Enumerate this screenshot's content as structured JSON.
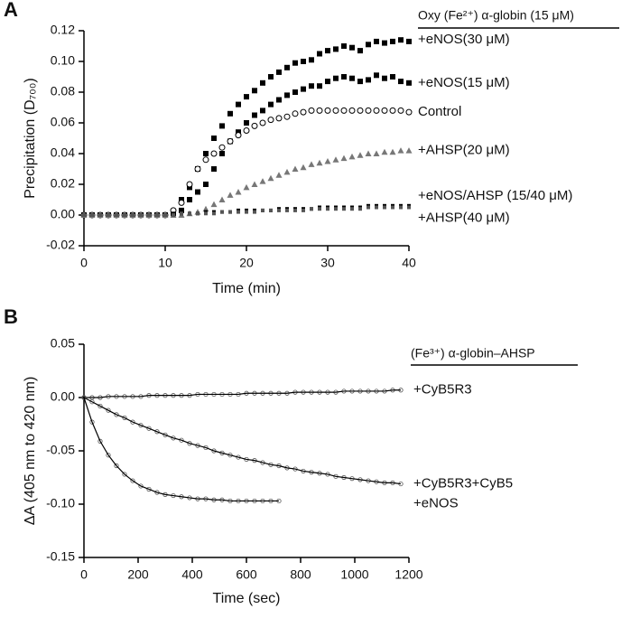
{
  "chart_data": [
    {
      "type": "scatter",
      "panel_label": "A",
      "x_label": "Time (min)",
      "y_label": "Precipitation (D₇₀₀)",
      "legend_title": "Oxy (Fe²⁺) α-globin (15 μM)",
      "x": [
        0,
        1,
        2,
        3,
        4,
        5,
        6,
        7,
        8,
        9,
        10,
        11,
        12,
        13,
        14,
        15,
        16,
        17,
        18,
        19,
        20,
        21,
        22,
        23,
        24,
        25,
        26,
        27,
        28,
        29,
        30,
        31,
        32,
        33,
        34,
        35,
        36,
        37,
        38,
        39,
        40
      ],
      "xlim": [
        0,
        40
      ],
      "xticks": [
        0,
        10,
        20,
        30,
        40
      ],
      "ylim": [
        -0.02,
        0.12
      ],
      "yticks": [
        -0.02,
        {
          "value": 0,
          "label": "0.00"
        },
        0.02,
        0.04,
        0.06,
        0.08,
        {
          "value": 0.1,
          "label": "0.10"
        },
        0.12
      ],
      "series": [
        {
          "name": "+eNOS(30 μM)",
          "color": "#000000",
          "marker": "square",
          "values": [
            0,
            0,
            0,
            0,
            0,
            0,
            0,
            0,
            0,
            0,
            0,
            0.002,
            0.01,
            0.018,
            0.03,
            0.04,
            0.05,
            0.058,
            0.066,
            0.072,
            0.077,
            0.081,
            0.086,
            0.09,
            0.093,
            0.096,
            0.099,
            0.1,
            0.101,
            0.105,
            0.107,
            0.108,
            0.11,
            0.109,
            0.107,
            0.111,
            0.113,
            0.112,
            0.113,
            0.114,
            0.113
          ]
        },
        {
          "name": "+eNOS(15 μM)",
          "color": "#000000",
          "marker": "square",
          "values": [
            0,
            0,
            0,
            0,
            0,
            0,
            0,
            0,
            0,
            0,
            0,
            0.001,
            0.003,
            0.01,
            0.015,
            0.02,
            0.03,
            0.04,
            0.048,
            0.054,
            0.06,
            0.065,
            0.068,
            0.072,
            0.075,
            0.078,
            0.08,
            0.082,
            0.084,
            0.084,
            0.087,
            0.089,
            0.09,
            0.089,
            0.087,
            0.088,
            0.091,
            0.089,
            0.09,
            0.087,
            0.086
          ]
        },
        {
          "name": "Control",
          "color": "#000000",
          "marker": "circle-open",
          "values": [
            0,
            0,
            0,
            0,
            0,
            0,
            0,
            0,
            0,
            0,
            0,
            0.003,
            0.008,
            0.02,
            0.03,
            0.036,
            0.04,
            0.044,
            0.048,
            0.052,
            0.055,
            0.058,
            0.06,
            0.062,
            0.063,
            0.064,
            0.066,
            0.067,
            0.068,
            0.068,
            0.068,
            0.068,
            0.068,
            0.068,
            0.068,
            0.068,
            0.068,
            0.068,
            0.068,
            0.068,
            0.067
          ]
        },
        {
          "name": "+AHSP(20 μM)",
          "color": "#777777",
          "marker": "triangle",
          "values": [
            0,
            0,
            0,
            0,
            0,
            0,
            0,
            0,
            0,
            0,
            0,
            0,
            0,
            0.001,
            0.002,
            0.004,
            0.007,
            0.01,
            0.013,
            0.015,
            0.018,
            0.02,
            0.022,
            0.024,
            0.026,
            0.028,
            0.03,
            0.031,
            0.033,
            0.034,
            0.035,
            0.036,
            0.037,
            0.038,
            0.039,
            0.04,
            0.04,
            0.041,
            0.041,
            0.042,
            0.042
          ]
        },
        {
          "name": "+eNOS/AHSP (15/40 μM)",
          "color": "#000000",
          "marker": "square",
          "values": [
            0,
            0,
            0,
            0,
            0,
            0,
            0,
            0,
            0,
            0,
            0,
            0.001,
            0.001,
            0.001,
            0.001,
            0.002,
            0.002,
            0.002,
            0.002,
            0.003,
            0.003,
            0.003,
            0.003,
            0.003,
            0.004,
            0.004,
            0.004,
            0.004,
            0.004,
            0.005,
            0.005,
            0.005,
            0.005,
            0.005,
            0.005,
            0.006,
            0.006,
            0.006,
            0.006,
            0.006,
            0.006
          ]
        },
        {
          "name": "+AHSP(40 μM)",
          "color": "#555555",
          "marker": "square",
          "values": [
            0,
            0,
            0,
            0,
            0,
            0,
            0,
            0,
            0,
            0,
            0,
            0,
            0.001,
            0.001,
            0.001,
            0.001,
            0.001,
            0.002,
            0.002,
            0.002,
            0.002,
            0.002,
            0.003,
            0.003,
            0.003,
            0.003,
            0.003,
            0.003,
            0.004,
            0.004,
            0.004,
            0.004,
            0.004,
            0.004,
            0.004,
            0.005,
            0.005,
            0.005,
            0.005,
            0.005,
            0.005
          ]
        }
      ]
    },
    {
      "type": "scatter-line",
      "panel_label": "B",
      "x_label": "Time (sec)",
      "y_label": "ΔA (405 nm to 420 nm)",
      "legend_title": "(Fe³⁺) α-globin–AHSP",
      "x": [
        0,
        30,
        60,
        90,
        120,
        150,
        180,
        210,
        240,
        270,
        300,
        330,
        360,
        390,
        420,
        450,
        480,
        510,
        540,
        570,
        600,
        630,
        660,
        690,
        720,
        750,
        780,
        810,
        840,
        870,
        900,
        930,
        960,
        990,
        1020,
        1050,
        1080,
        1110,
        1140,
        1170
      ],
      "xlim": [
        0,
        1200
      ],
      "xticks": [
        0,
        200,
        400,
        600,
        800,
        1000,
        1200
      ],
      "ylim": [
        -0.15,
        0.05
      ],
      "yticks": [
        -0.15,
        {
          "value": -0.1,
          "label": "-0.10"
        },
        -0.05,
        {
          "value": 0,
          "label": "0.00"
        },
        0.05
      ],
      "series": [
        {
          "name": "+CyB5R3",
          "color": "#555555",
          "values": [
            0,
            0,
            0,
            0.001,
            0.001,
            0.001,
            0.001,
            0.001,
            0.002,
            0.002,
            0.002,
            0.002,
            0.002,
            0.002,
            0.003,
            0.003,
            0.003,
            0.003,
            0.003,
            0.003,
            0.004,
            0.004,
            0.004,
            0.004,
            0.004,
            0.004,
            0.005,
            0.005,
            0.005,
            0.005,
            0.005,
            0.005,
            0.006,
            0.006,
            0.006,
            0.006,
            0.006,
            0.006,
            0.007,
            0.007
          ]
        },
        {
          "name": "+CyB5R3+CyB5",
          "color": "#555555",
          "values": [
            0,
            -0.004,
            -0.008,
            -0.012,
            -0.016,
            -0.019,
            -0.023,
            -0.026,
            -0.029,
            -0.032,
            -0.035,
            -0.038,
            -0.04,
            -0.043,
            -0.045,
            -0.047,
            -0.05,
            -0.052,
            -0.054,
            -0.056,
            -0.058,
            -0.059,
            -0.061,
            -0.063,
            -0.064,
            -0.066,
            -0.067,
            -0.069,
            -0.07,
            -0.071,
            -0.072,
            -0.074,
            -0.075,
            -0.076,
            -0.077,
            -0.078,
            -0.079,
            -0.08,
            -0.08,
            -0.081
          ]
        },
        {
          "name": "+eNOS",
          "color": "#555555",
          "values": [
            0,
            -0.023,
            -0.041,
            -0.054,
            -0.064,
            -0.072,
            -0.078,
            -0.083,
            -0.086,
            -0.089,
            -0.091,
            -0.092,
            -0.093,
            -0.094,
            -0.095,
            -0.095,
            -0.096,
            -0.096,
            -0.097,
            -0.097,
            -0.097,
            -0.097,
            -0.097,
            -0.097,
            -0.097,
            null,
            null,
            null,
            null,
            null,
            null,
            null,
            null,
            null,
            null,
            null,
            null,
            null,
            null,
            null
          ]
        }
      ]
    }
  ]
}
